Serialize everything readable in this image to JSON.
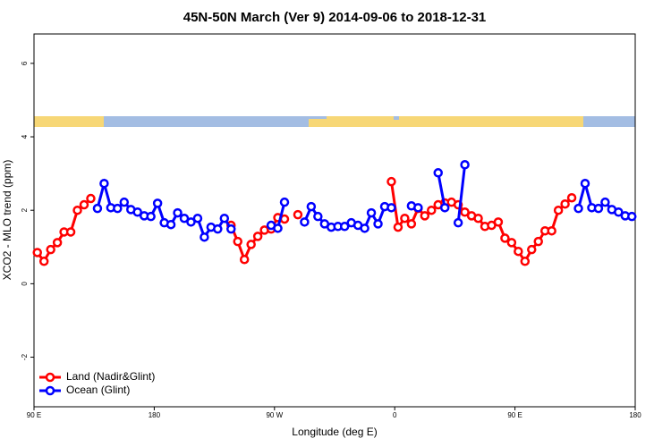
{
  "chart_data": {
    "type": "line",
    "title": "45N-50N March (Ver 9)   2014-09-06 to 2018-12-31",
    "x_label": "Longitude (deg E)",
    "y_label": "XCO2 - MLO trend (ppm)",
    "x": [
      92.5,
      97.5,
      102.5,
      107.5,
      112.5,
      117.5,
      122.5,
      127.5,
      132.5,
      137.5,
      142.5,
      147.5,
      152.5,
      157.5,
      162.5,
      167.5,
      172.5,
      177.5,
      182.5,
      187.5,
      192.5,
      197.5,
      202.5,
      207.5,
      212.5,
      217.5,
      222.5,
      227.5,
      232.5,
      237.5,
      242.5,
      247.5,
      252.5,
      257.5,
      262.5,
      267.5,
      272.5,
      277.5,
      282.5,
      287.5,
      292.5,
      297.5,
      302.5,
      307.5,
      312.5,
      317.5,
      322.5,
      327.5,
      332.5,
      337.5,
      342.5,
      347.5,
      352.5,
      357.5,
      362.5,
      367.5,
      372.5,
      377.5,
      382.5,
      387.5,
      392.5,
      397.5,
      402.5,
      407.5,
      412.5,
      417.5,
      422.5,
      427.5,
      432.5,
      437.5,
      442.5,
      447.5,
      452.5,
      457.5,
      462.5,
      467.5,
      472.5,
      477.5,
      482.5,
      487.5,
      492.5,
      497.5,
      502.5,
      507.5,
      512.5,
      517.5,
      522.5,
      527.5,
      532.5,
      537.5
    ],
    "series": [
      {
        "name": "Land (Nadir&Glint)",
        "color": "#ff0000",
        "values": [
          0.85,
          0.61,
          0.93,
          1.12,
          1.41,
          1.41,
          2.0,
          2.15,
          2.32,
          null,
          null,
          null,
          null,
          null,
          null,
          null,
          null,
          null,
          null,
          null,
          null,
          null,
          null,
          null,
          null,
          null,
          null,
          null,
          null,
          1.59,
          1.15,
          0.66,
          1.07,
          1.29,
          1.46,
          1.49,
          1.8,
          1.76,
          null,
          1.88,
          null,
          null,
          null,
          null,
          null,
          null,
          null,
          null,
          null,
          null,
          null,
          null,
          null,
          2.78,
          1.54,
          1.78,
          1.63,
          2.05,
          1.85,
          2.0,
          2.15,
          2.2,
          2.22,
          2.15,
          1.95,
          1.85,
          1.78,
          1.56,
          1.59,
          1.68,
          1.24,
          1.12,
          0.88,
          0.61,
          0.93,
          1.15,
          1.44,
          1.44,
          2.0,
          2.17,
          2.34,
          null,
          null,
          null,
          null,
          null,
          null,
          null,
          null,
          null
        ]
      },
      {
        "name": "Ocean (Glint)",
        "color": "#0000ff",
        "values": [
          null,
          null,
          null,
          null,
          null,
          null,
          null,
          null,
          null,
          2.05,
          2.73,
          2.07,
          2.05,
          2.22,
          2.02,
          1.95,
          1.85,
          1.83,
          2.19,
          1.66,
          1.61,
          1.93,
          1.78,
          1.68,
          1.78,
          1.27,
          1.54,
          1.49,
          1.78,
          1.49,
          null,
          null,
          null,
          null,
          null,
          1.59,
          1.51,
          2.22,
          null,
          null,
          1.68,
          2.1,
          1.83,
          1.63,
          1.54,
          1.56,
          1.56,
          1.66,
          1.59,
          1.51,
          1.93,
          1.63,
          2.1,
          2.07,
          null,
          null,
          2.12,
          2.07,
          null,
          null,
          3.02,
          2.07,
          null,
          1.66,
          3.24,
          null,
          null,
          null,
          null,
          null,
          null,
          null,
          null,
          null,
          null,
          null,
          null,
          null,
          null,
          null,
          null,
          2.05,
          2.73,
          2.07,
          2.05,
          2.22,
          2.02,
          1.95,
          1.85,
          1.83
        ]
      }
    ],
    "xlim": [
      90,
      540
    ],
    "xticks": [
      {
        "value": 90,
        "label": "90 E"
      },
      180,
      {
        "value": 270,
        "label": "90 W"
      },
      {
        "value": 360,
        "label": "0"
      },
      {
        "value": 450,
        "label": "90 E"
      },
      {
        "value": 540,
        "label": "180"
      }
    ],
    "ylim": [
      -3.35,
      6.8
    ],
    "yticks": [
      -2,
      0,
      2,
      4,
      6
    ],
    "legend": "bottom-left"
  }
}
